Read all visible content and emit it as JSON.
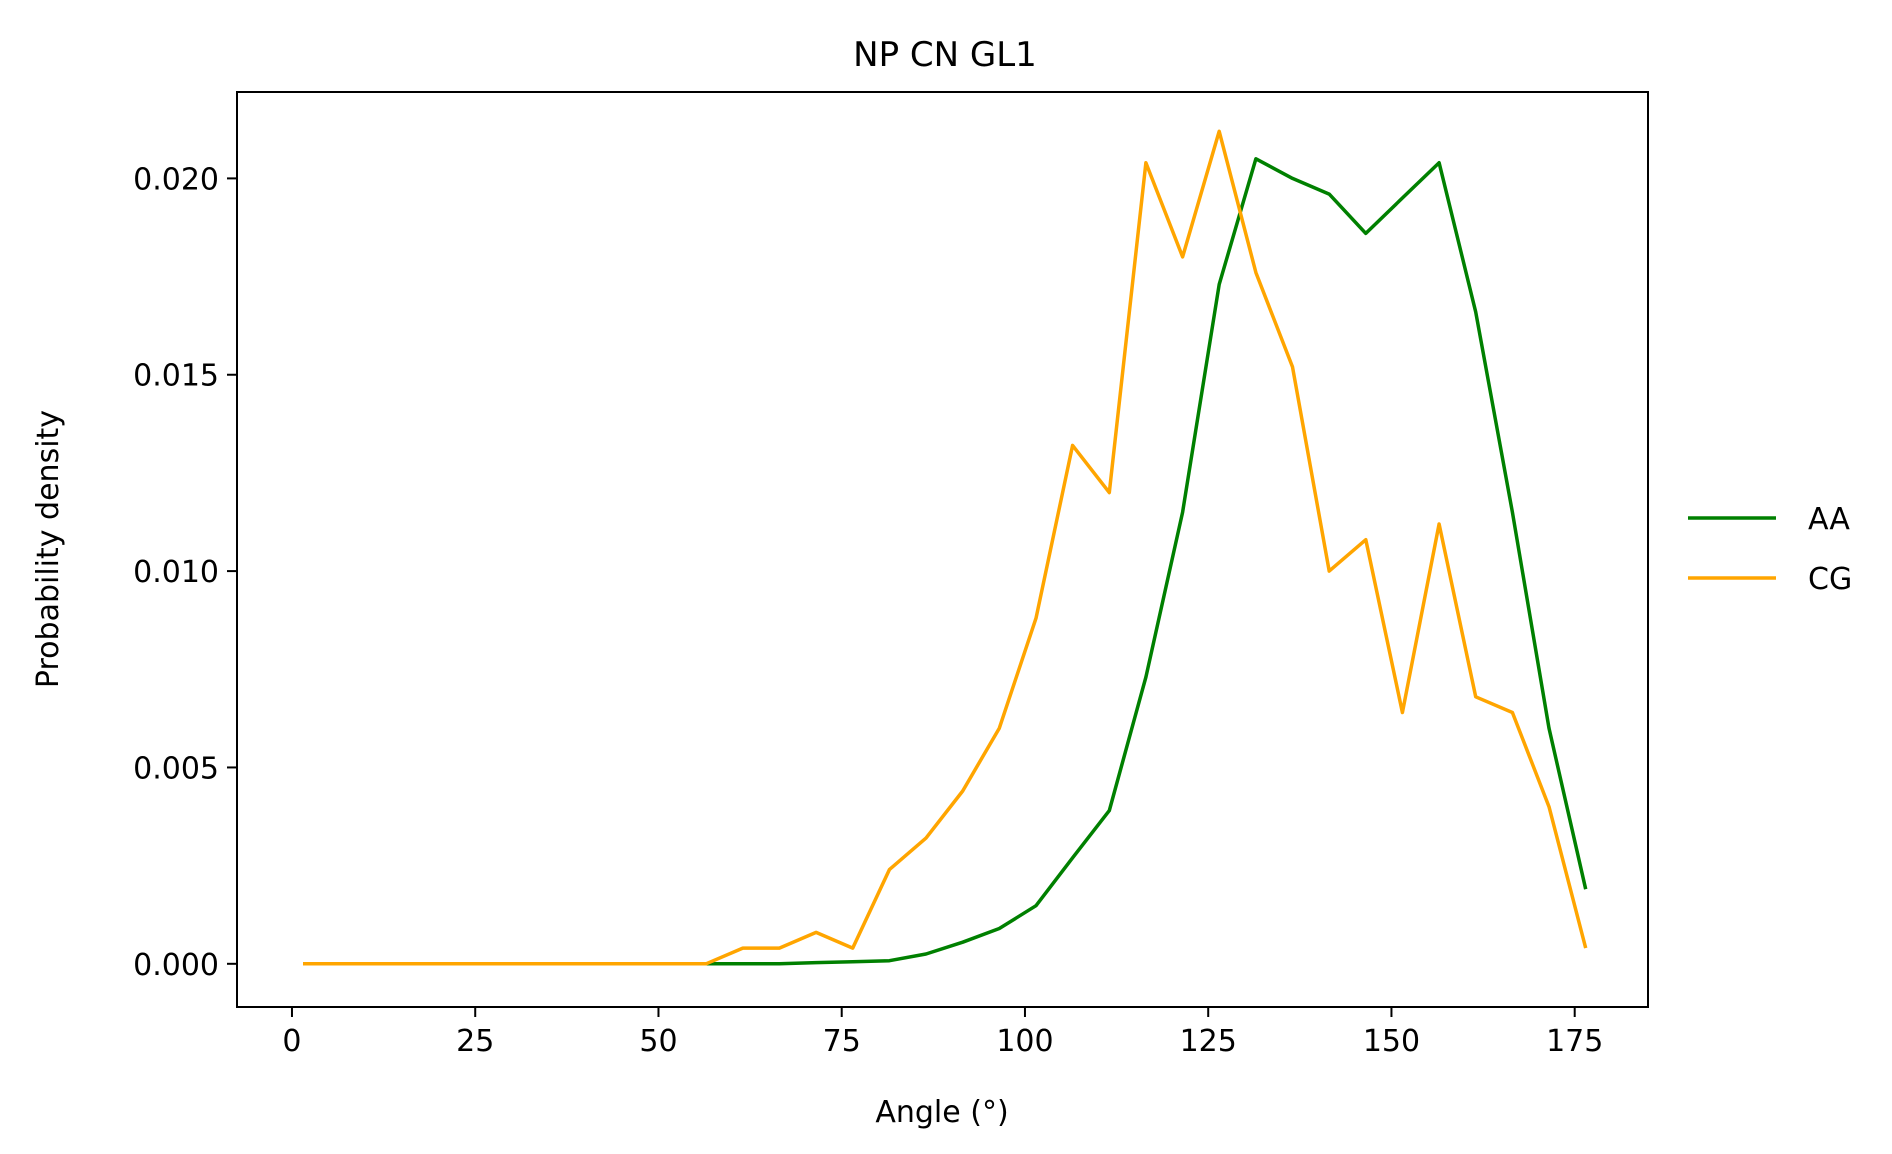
{
  "chart_data": {
    "type": "line",
    "title": "NP CN GL1",
    "xlabel": "Angle (°)",
    "ylabel": "Probability density",
    "xlim": [
      -7.5,
      185
    ],
    "ylim": [
      -0.0011,
      0.0222
    ],
    "xticks": [
      0,
      25,
      50,
      75,
      100,
      125,
      150,
      175
    ],
    "xtick_labels": [
      "0",
      "25",
      "50",
      "75",
      "100",
      "125",
      "150",
      "175"
    ],
    "yticks": [
      0.0,
      0.005,
      0.01,
      0.015,
      0.02
    ],
    "ytick_labels": [
      "0.000",
      "0.005",
      "0.010",
      "0.015",
      "0.020"
    ],
    "grid": false,
    "legend_position": "right-outside",
    "x": [
      1.5,
      6.5,
      11.5,
      16.5,
      21.5,
      26.5,
      31.5,
      36.5,
      41.5,
      46.5,
      51.5,
      56.5,
      61.5,
      66.5,
      71.5,
      76.5,
      81.5,
      86.5,
      91.5,
      96.5,
      101.5,
      106.5,
      111.5,
      116.5,
      121.5,
      126.5,
      131.5,
      136.5,
      141.5,
      146.5,
      151.5,
      156.5,
      161.5,
      166.5,
      171.5,
      176.5
    ],
    "series": [
      {
        "name": "AA",
        "color": "#008000",
        "values": [
          0,
          0,
          0,
          0,
          0,
          0,
          0,
          0,
          0,
          0,
          0,
          0,
          0,
          0,
          3e-05,
          5e-05,
          8e-05,
          0.00025,
          0.00055,
          0.0009,
          0.00148,
          0.0027,
          0.0039,
          0.0073,
          0.0115,
          0.0173,
          0.0205,
          0.02,
          0.0196,
          0.0186,
          0.0195,
          0.0204,
          0.0166,
          0.0115,
          0.006,
          0.0019
        ]
      },
      {
        "name": "CG",
        "color": "#ffa500",
        "values": [
          0,
          0,
          0,
          0,
          0,
          0,
          0,
          0,
          0,
          0,
          0,
          0,
          0.0004,
          0.0004,
          0.0008,
          0.0004,
          0.0024,
          0.0032,
          0.0044,
          0.006,
          0.0088,
          0.0132,
          0.012,
          0.0204,
          0.018,
          0.0212,
          0.0176,
          0.0152,
          0.01,
          0.0108,
          0.0064,
          0.0112,
          0.0068,
          0.0064,
          0.004,
          0.0004
        ]
      }
    ]
  }
}
